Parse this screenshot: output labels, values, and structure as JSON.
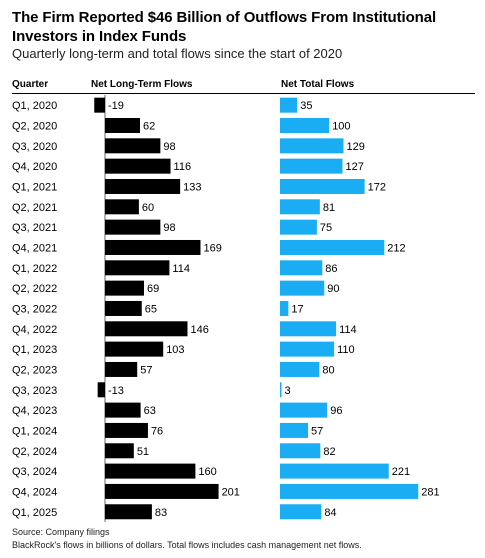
{
  "title": "The Firm Reported $46 Billion of Outflows From Institutional Investors in Index Funds",
  "subtitle": "Quarterly long-term and total flows since the start of 2020",
  "footer": {
    "source": "Source: Company filings",
    "note": "BlackRock's flows in billions of dollars. Total flows includes cash management net flows."
  },
  "colors": {
    "long_term": "#000000",
    "total": "#1AADF4"
  },
  "chart_data": {
    "type": "bar",
    "orientation": "horizontal",
    "category_header": "Quarter",
    "categories": [
      "Q1, 2020",
      "Q2, 2020",
      "Q3, 2020",
      "Q4, 2020",
      "Q1, 2021",
      "Q2, 2021",
      "Q3, 2021",
      "Q4, 2021",
      "Q1, 2022",
      "Q2, 2022",
      "Q3, 2022",
      "Q4, 2022",
      "Q1, 2023",
      "Q2, 2023",
      "Q3, 2023",
      "Q4, 2023",
      "Q1, 2024",
      "Q2, 2024",
      "Q3, 2024",
      "Q4, 2024",
      "Q1, 2025"
    ],
    "series": [
      {
        "name": "Net Long-Term Flows",
        "values": [
          -19,
          62,
          98,
          116,
          133,
          60,
          98,
          169,
          114,
          69,
          65,
          146,
          103,
          57,
          -13,
          63,
          76,
          51,
          160,
          201,
          83
        ]
      },
      {
        "name": "Net Total Flows",
        "values": [
          35,
          100,
          129,
          127,
          172,
          81,
          75,
          212,
          86,
          90,
          17,
          114,
          110,
          80,
          3,
          96,
          57,
          82,
          221,
          281,
          84
        ]
      }
    ]
  }
}
